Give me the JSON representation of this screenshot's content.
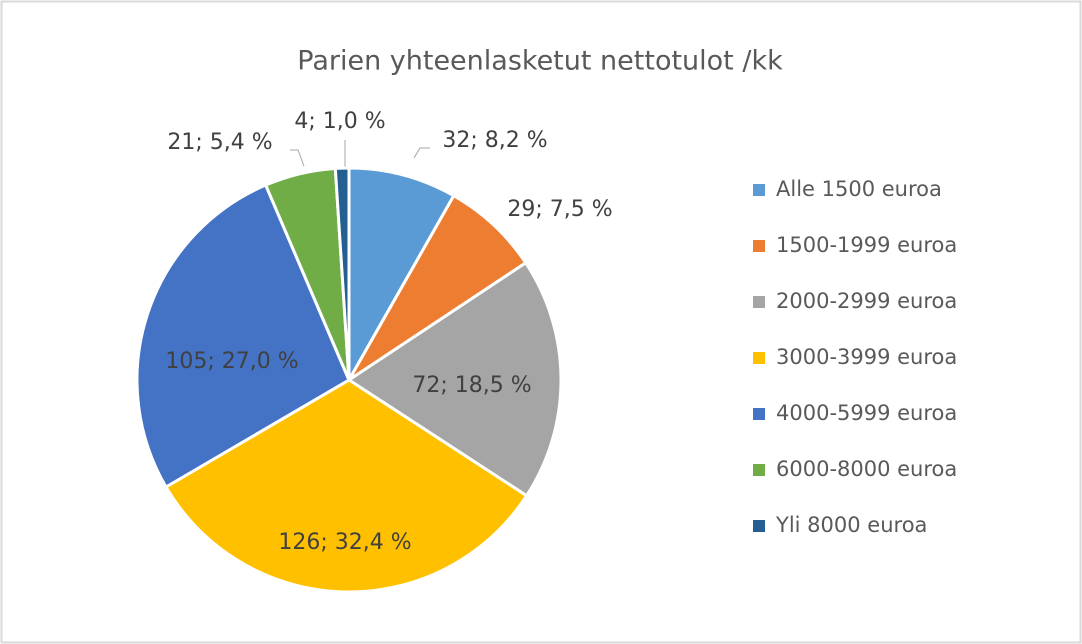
{
  "chart_data": {
    "type": "pie",
    "title": "Parien yhteenlasketut nettotulot /kk",
    "categories": [
      "Alle 1500 euroa",
      "1500-1999 euroa",
      "2000-2999 euroa",
      "3000-3999 euroa",
      "4000-5999 euroa",
      "6000-8000 euroa",
      "Yli 8000 euroa"
    ],
    "values": [
      32,
      29,
      72,
      126,
      105,
      21,
      4
    ],
    "value_labels": [
      "32; 8,2 %",
      "29; 7,5 %",
      "72; 18,5 %",
      "126; 32,4 %",
      "105; 27,0 %",
      "21; 5,4 %",
      "4; 1,0 %"
    ],
    "colors": [
      "#5b9bd5",
      "#ed7d31",
      "#a5a5a5",
      "#ffc000",
      "#4472c4",
      "#70ad47",
      "#255e91"
    ],
    "legend": "right"
  }
}
